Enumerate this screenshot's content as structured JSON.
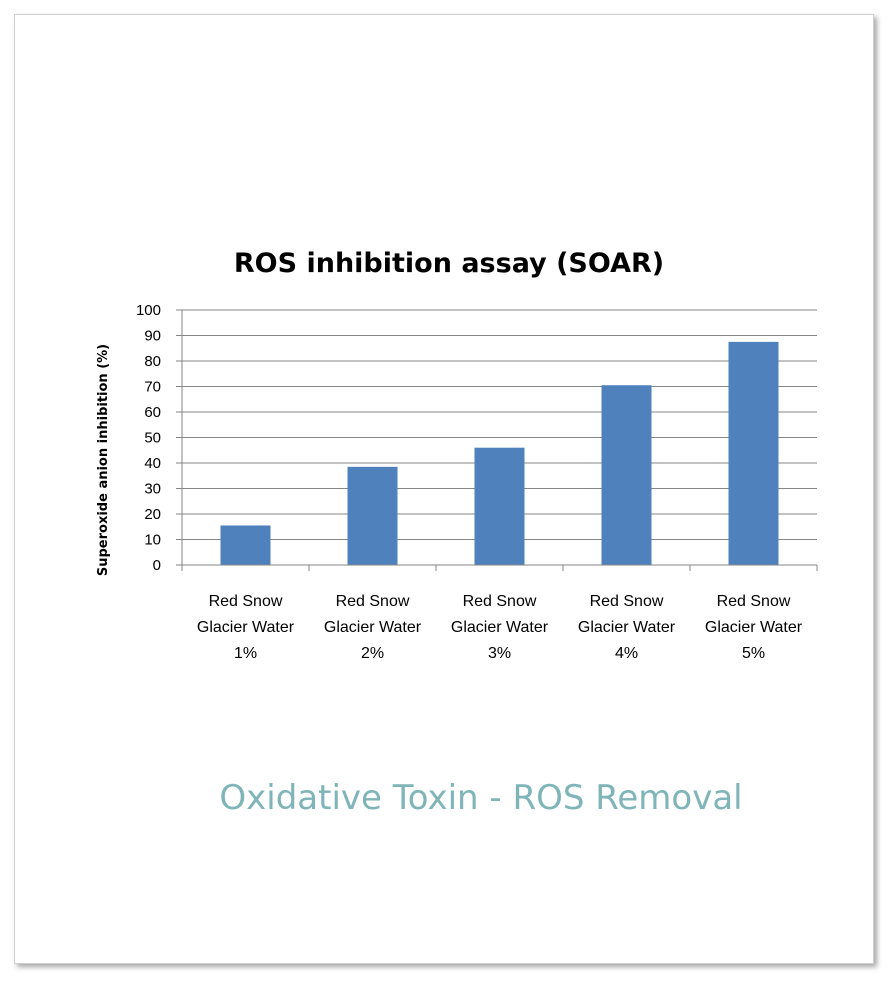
{
  "caption": "Oxidative Toxin - ROS Removal",
  "colors": {
    "bar": "#4f81bd",
    "grid": "#868686",
    "caption": "#7fb4b8"
  },
  "chart_data": {
    "type": "bar",
    "title": "ROS inhibition assay (SOAR)",
    "xlabel": "",
    "ylabel": "Superoxide anion inhibition (%)",
    "ylim": [
      0,
      100
    ],
    "yticks": [
      0,
      10,
      20,
      30,
      40,
      50,
      60,
      70,
      80,
      90,
      100
    ],
    "grid": true,
    "categories": [
      [
        "Red Snow",
        "Glacier Water",
        "1%"
      ],
      [
        "Red Snow",
        "Glacier Water",
        "2%"
      ],
      [
        "Red Snow",
        "Glacier Water",
        "3%"
      ],
      [
        "Red Snow",
        "Glacier Water",
        "4%"
      ],
      [
        "Red Snow",
        "Glacier Water",
        "5%"
      ]
    ],
    "values": [
      15.5,
      38.5,
      46,
      70.5,
      87.5
    ]
  }
}
